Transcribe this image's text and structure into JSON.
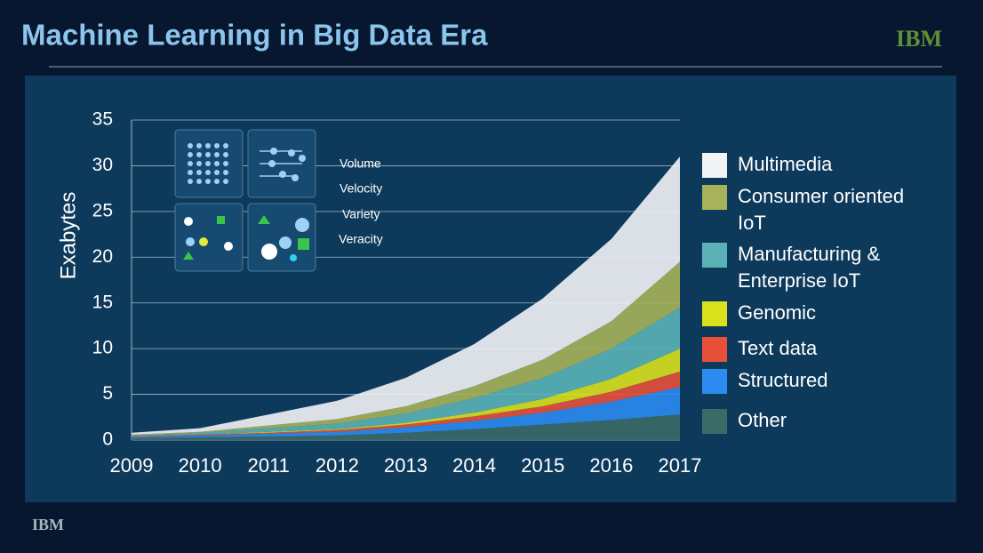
{
  "title": "Machine Learning in Big Data Era",
  "logo_top": "IBM",
  "logo_bottom": "IBM",
  "icon_labels": [
    "Volume",
    "Velocity",
    "Variety",
    "Veracity"
  ],
  "chart_data": {
    "type": "stacked-area",
    "y_label": "Exabytes",
    "x": [
      2009,
      2010,
      2011,
      2012,
      2013,
      2014,
      2015,
      2016,
      2017
    ],
    "xlim": [
      2009,
      2017
    ],
    "xticks": [
      2009,
      2010,
      2011,
      2012,
      2013,
      2014,
      2015,
      2016,
      2017
    ],
    "ylim": [
      0,
      35
    ],
    "yticks": [
      0,
      5,
      10,
      15,
      20,
      25,
      30,
      35
    ],
    "grid": true,
    "series": [
      {
        "name": "Multimedia",
        "color": "#f2f3f6",
        "values": [
          0.2,
          0.4,
          1.2,
          2.0,
          3.1,
          4.6,
          6.7,
          9.0,
          11.5
        ]
      },
      {
        "name": "Consumer oriented IoT",
        "color": "#a7b35a",
        "values": [
          0.1,
          0.1,
          0.3,
          0.5,
          0.8,
          1.3,
          2.0,
          3.0,
          5.0
        ]
      },
      {
        "name": "Manufacturing & Enterprise IoT",
        "color": "#5ab2b7",
        "values": [
          0.1,
          0.2,
          0.4,
          0.6,
          1.0,
          1.6,
          2.3,
          3.3,
          4.5
        ]
      },
      {
        "name": "Genomic",
        "color": "#d9e21c",
        "values": [
          0,
          0,
          0.1,
          0.1,
          0.2,
          0.4,
          0.8,
          1.4,
          2.5
        ]
      },
      {
        "name": "Text data",
        "color": "#e9503a",
        "values": [
          0.1,
          0.1,
          0.1,
          0.2,
          0.3,
          0.5,
          0.7,
          1.1,
          1.7
        ]
      },
      {
        "name": "Structured",
        "color": "#2b8bf0",
        "values": [
          0.1,
          0.2,
          0.3,
          0.4,
          0.6,
          0.9,
          1.3,
          2.0,
          3.0
        ]
      },
      {
        "name": "Other",
        "color": "#3c6a66",
        "values": [
          0.2,
          0.3,
          0.4,
          0.5,
          0.8,
          1.2,
          1.7,
          2.2,
          2.8
        ]
      }
    ]
  }
}
